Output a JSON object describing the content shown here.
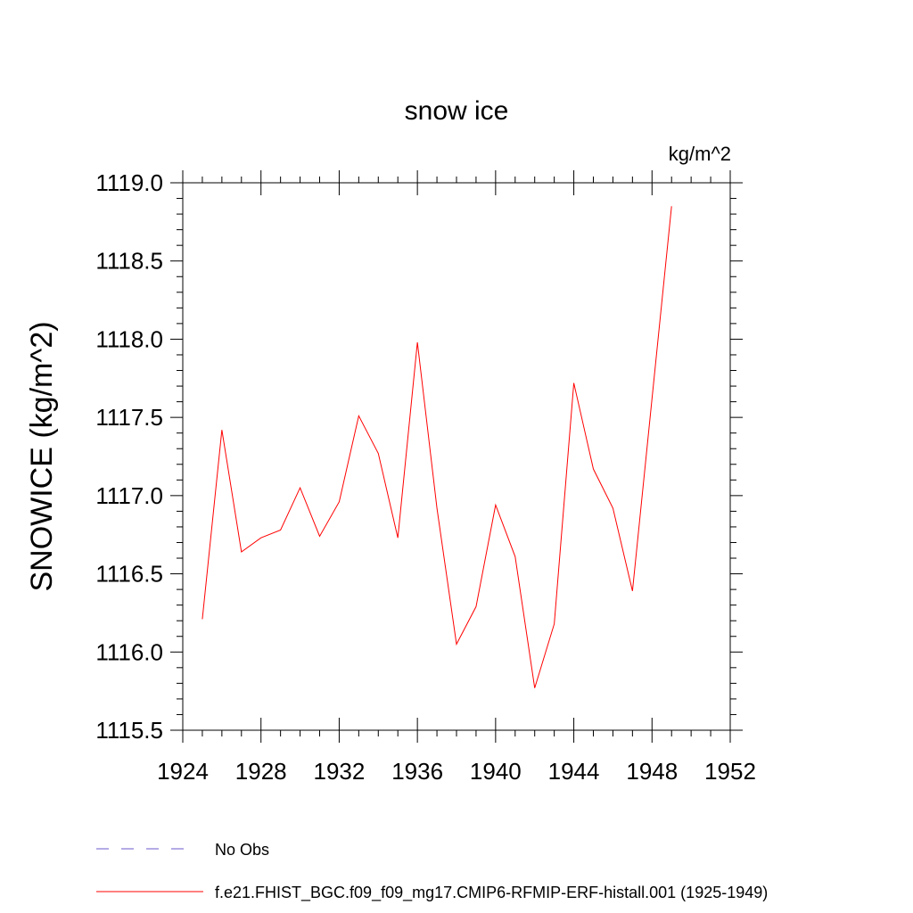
{
  "chart_data": {
    "type": "line",
    "title": "snow ice",
    "units_label": "kg/m^2",
    "ylabel": "SNOWICE  (kg/m^2)",
    "xlabel": "",
    "xlim": [
      1924,
      1952
    ],
    "ylim": [
      1115.5,
      1119.0
    ],
    "x_ticks": [
      1924,
      1928,
      1932,
      1936,
      1940,
      1944,
      1948,
      1952
    ],
    "x_tick_labels": [
      "1924",
      "1928",
      "1932",
      "1936",
      "1940",
      "1944",
      "1948",
      "1952"
    ],
    "y_ticks": [
      1115.5,
      1116.0,
      1116.5,
      1117.0,
      1117.5,
      1118.0,
      1118.5,
      1119.0
    ],
    "y_tick_labels": [
      "1115.5",
      "1116.0",
      "1116.5",
      "1117.0",
      "1117.5",
      "1118.0",
      "1118.5",
      "1119.0"
    ],
    "grid": false,
    "legend_placement": "bottom",
    "series": [
      {
        "name": "f.e21.FHIST_BGC.f09_f09_mg17.CMIP6-RFMIP-ERF-histall.001 (1925-1949)",
        "color": "#ff0000",
        "style": "solid",
        "x": [
          1925,
          1926,
          1927,
          1928,
          1929,
          1930,
          1931,
          1932,
          1933,
          1934,
          1935,
          1936,
          1937,
          1938,
          1939,
          1940,
          1941,
          1942,
          1943,
          1944,
          1945,
          1946,
          1947,
          1948,
          1949
        ],
        "values": [
          1116.21,
          1117.42,
          1116.64,
          1116.73,
          1116.78,
          1117.05,
          1116.74,
          1116.96,
          1117.51,
          1117.27,
          1116.73,
          1117.98,
          1116.92,
          1116.05,
          1116.29,
          1116.94,
          1116.61,
          1115.77,
          1116.18,
          1117.72,
          1117.17,
          1116.92,
          1116.39,
          1117.62,
          1118.85
        ]
      }
    ],
    "legend": [
      {
        "label": "No Obs",
        "color": "#6a5acd",
        "style": "dashed"
      },
      {
        "label": "f.e21.FHIST_BGC.f09_f09_mg17.CMIP6-RFMIP-ERF-histall.001 (1925-1949)",
        "color": "#ff0000",
        "style": "solid"
      }
    ]
  }
}
